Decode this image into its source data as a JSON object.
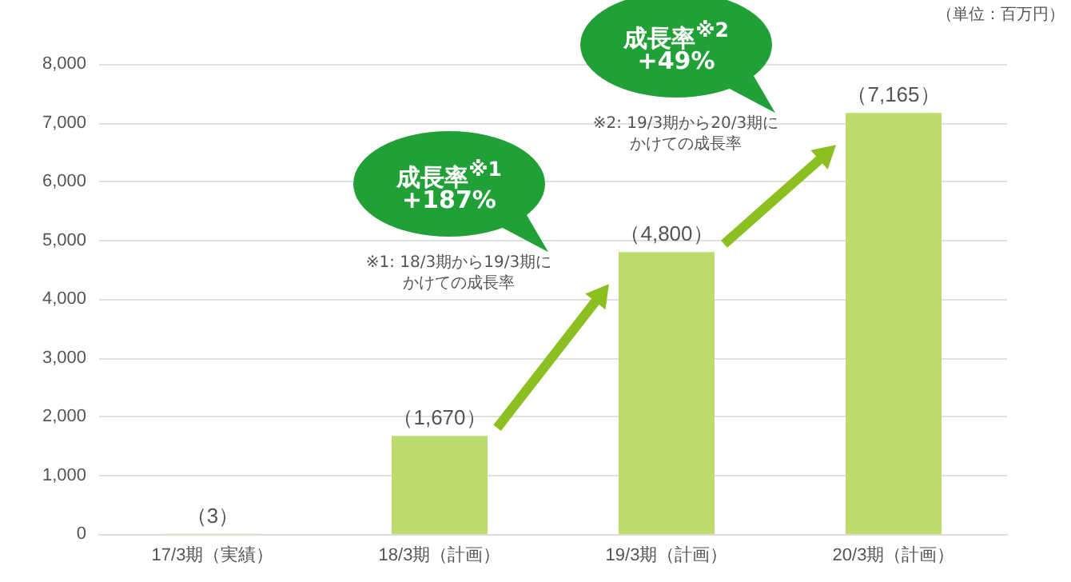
{
  "chart_data": {
    "type": "bar",
    "categories": [
      "17/3期（実績）",
      "18/3期（計画）",
      "19/3期（計画）",
      "20/3期（計画）"
    ],
    "values": [
      3,
      1670,
      4800,
      7165
    ],
    "value_labels": [
      "（3）",
      "（1,670）",
      "（4,800）",
      "（7,165）"
    ],
    "color": "#bedc6e",
    "ylim": [
      0,
      8000
    ],
    "yticks": [
      0,
      {
        "value": 1000,
        "label": "1,000"
      },
      {
        "value": 2000,
        "label": "2,000"
      },
      {
        "value": 3000,
        "label": "3,000"
      },
      {
        "value": 4000,
        "label": "4,000"
      },
      {
        "value": 5000,
        "label": "5,000"
      },
      {
        "value": 6000,
        "label": "6,000"
      },
      {
        "value": 7000,
        "label": "7,000"
      },
      {
        "value": 8000,
        "label": "8,000"
      }
    ],
    "grid": "y",
    "annotations": [
      "（単位：百万円）",
      "成長率$^{※1}$",
      "+187%",
      "※1: 18/3期から19/3期にかけての成長率",
      "成長率$^{※2}$",
      "+49%",
      "※2: 19/3期から20/3期にかけての成長率"
    ]
  }
}
